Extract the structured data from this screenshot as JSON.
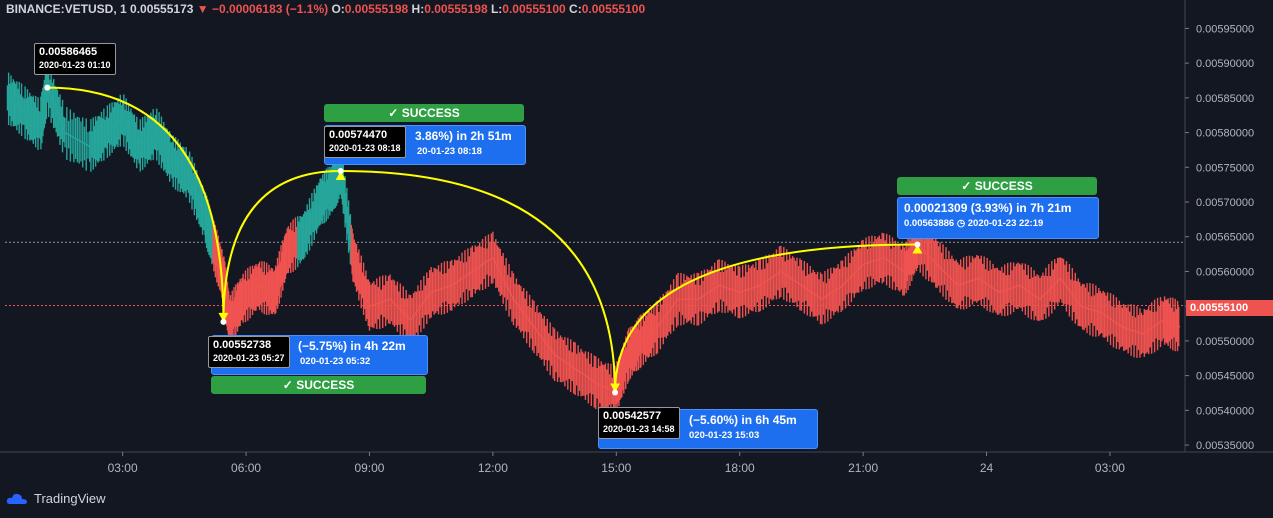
{
  "header": {
    "symbol": "BINANCE:VETUSD, 1",
    "last": "0.00555173",
    "change": "−0.00006183 (−1.1%)",
    "o_label": "O:",
    "o": "0.00555198",
    "h_label": "H:",
    "h": "0.00555198",
    "l_label": "L:",
    "l": "0.00555100",
    "c_label": "C:",
    "c": "0.00555100"
  },
  "brand": "TradingView",
  "current_price": "0.00555100",
  "colors": {
    "up": "#26a69a",
    "down": "#ef5350",
    "background": "#131722",
    "arrow": "#ffff00"
  },
  "annotations": {
    "p1": {
      "value": "0.00586465",
      "time": "2020-01-23 01:10"
    },
    "p2": {
      "value": "0.00552738",
      "time": "2020-01-23 05:27",
      "stat": "(−5.75%) in 4h 22m",
      "stat_sub": "020-01-23  05:32",
      "status": "SUCCESS"
    },
    "p3": {
      "value": "0.00574470",
      "time": "2020-01-23 08:18",
      "stat": "3.86%) in 2h 51m",
      "stat_sub": "20-01-23  08:18",
      "status": "SUCCESS"
    },
    "p4": {
      "value": "0.00542577",
      "time": "2020-01-23 14:58",
      "stat": "(−5.60%) in 6h 45m",
      "stat_sub": "020-01-23  15:03"
    },
    "p5": {
      "stat": "0.00021309 (3.93%) in 7h 21m",
      "stat_sub": "0.00563886 ◷ 2020-01-23  22:19",
      "status": "SUCCESS"
    }
  },
  "chart_data": {
    "type": "line",
    "x_ticks": [
      "03:00",
      "06:00",
      "09:00",
      "12:00",
      "15:00",
      "18:00",
      "21:00",
      "24",
      "03:00"
    ],
    "x_tick_hours": [
      3,
      6,
      9,
      12,
      15,
      18,
      21,
      24,
      27
    ],
    "x_range_hours": [
      0.14,
      28.8
    ],
    "y_ticks": [
      "0.00595000",
      "0.00590000",
      "0.00585000",
      "0.00580000",
      "0.00575000",
      "0.00570000",
      "0.00565000",
      "0.00560000",
      "0.00555000",
      "0.00550000",
      "0.00545000",
      "0.00540000",
      "0.00535000"
    ],
    "ylim": [
      0.00534,
      0.005965
    ],
    "reference_price": 0.005642,
    "series": [
      {
        "values_hour": [
          0.2,
          0.6,
          1.0,
          1.17,
          1.6,
          2.2,
          2.6,
          3.0,
          3.4,
          3.8,
          4.2,
          4.6,
          5.0,
          5.2,
          5.45,
          5.6,
          5.9,
          6.3,
          6.7,
          7.0,
          7.4,
          7.8,
          8.1,
          8.3,
          8.6,
          9.0,
          9.5,
          10.0,
          10.5,
          11.0,
          11.5,
          12.0,
          12.5,
          13.0,
          13.5,
          14.0,
          14.5,
          14.97,
          15.3,
          15.6,
          16.0,
          16.5,
          17.0,
          17.5,
          18.0,
          18.5,
          19.0,
          19.5,
          20.0,
          20.5,
          21.0,
          21.5,
          22.0,
          22.32,
          22.8,
          23.3,
          23.8,
          24.3,
          24.8,
          25.3,
          25.8,
          26.3,
          26.8,
          27.3,
          27.8,
          28.3,
          28.7
        ],
        "values": [
          0.00585,
          0.00583,
          0.00581,
          0.005865,
          0.0058,
          0.00578,
          0.0058,
          0.00582,
          0.00578,
          0.0058,
          0.00576,
          0.00574,
          0.00568,
          0.00564,
          0.00559,
          0.005528,
          0.00556,
          0.00558,
          0.00557,
          0.00563,
          0.00565,
          0.0057,
          0.00572,
          0.005745,
          0.00562,
          0.00555,
          0.00556,
          0.00553,
          0.00557,
          0.00558,
          0.0056,
          0.00562,
          0.00556,
          0.00552,
          0.00548,
          0.00546,
          0.00544,
          0.005426,
          0.00548,
          0.0055,
          0.00552,
          0.00556,
          0.00556,
          0.00558,
          0.00557,
          0.00558,
          0.0056,
          0.00558,
          0.00556,
          0.00558,
          0.00561,
          0.00562,
          0.0056,
          0.005639,
          0.00561,
          0.00558,
          0.00559,
          0.00557,
          0.00558,
          0.00556,
          0.00559,
          0.00555,
          0.00554,
          0.00552,
          0.00551,
          0.00553,
          0.00552
        ]
      }
    ]
  }
}
